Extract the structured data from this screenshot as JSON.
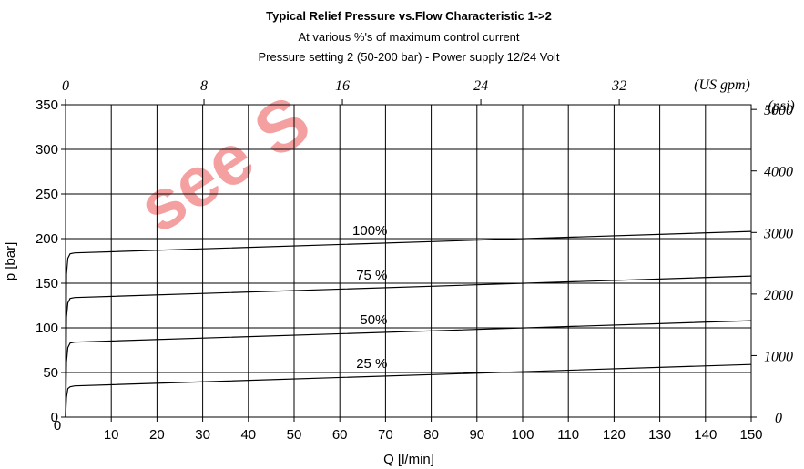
{
  "chart_data": {
    "type": "line",
    "title": "Typical Relief Pressure vs.Flow Characteristic 1->2",
    "subtitle": [
      "At various %'s of maximum control current",
      "Pressure setting 2 (50-200 bar) - Power supply 12/24 Volt"
    ],
    "watermark": "see S",
    "watermark_color": "#f5a0a0",
    "xlabel": "Q [l/min]",
    "ylabel": "p [bar]",
    "x_top_unit": "(US gpm)",
    "y_right_unit": "(psi)",
    "xlim": [
      0,
      150
    ],
    "ylim": [
      0,
      350
    ],
    "x_ticks": [
      10,
      20,
      30,
      40,
      50,
      60,
      70,
      80,
      90,
      100,
      110,
      120,
      130,
      140,
      150
    ],
    "x_origin_label": "0",
    "y_ticks": [
      0,
      50,
      100,
      150,
      200,
      250,
      300,
      350
    ],
    "x_top_ticks": [
      0,
      8,
      16,
      24,
      32
    ],
    "y_right_ticks": [
      0,
      1000,
      2000,
      3000,
      4000,
      5000
    ],
    "grid": true,
    "series": [
      {
        "name": "100%",
        "x": [
          0,
          0.2,
          0.5,
          1,
          2,
          150
        ],
        "y": [
          0,
          160,
          178,
          183,
          184,
          208
        ]
      },
      {
        "name": "75 %",
        "x": [
          0,
          0.2,
          0.5,
          1,
          2,
          150
        ],
        "y": [
          0,
          112,
          128,
          133,
          134,
          158
        ]
      },
      {
        "name": "50%",
        "x": [
          0,
          0.2,
          0.5,
          1,
          2,
          150
        ],
        "y": [
          0,
          62,
          78,
          83,
          84,
          108
        ]
      },
      {
        "name": "25 %",
        "x": [
          0,
          0.2,
          0.5,
          1,
          2,
          150
        ],
        "y": [
          0,
          22,
          32,
          34,
          35,
          59
        ]
      }
    ],
    "series_label_x": 70,
    "series_label_offset": 14
  }
}
